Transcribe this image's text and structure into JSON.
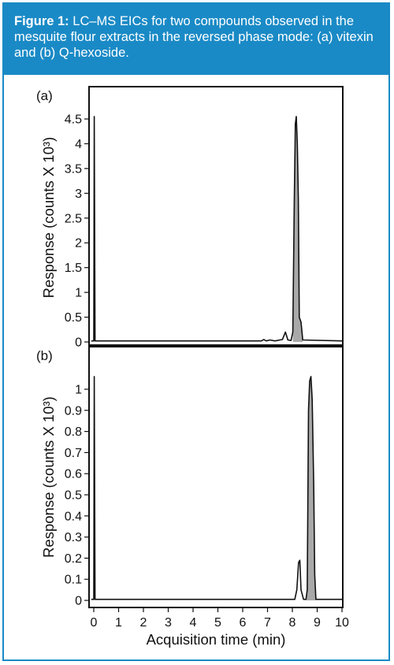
{
  "caption": {
    "label": "Figure 1:",
    "text": " LC–MS EICs for two compounds observed in the mesquite flour extracts in the reversed phase mode: (a) vitexin and (b) Q-hexoside."
  },
  "colors": {
    "accent": "#1a8ac6",
    "fill": "#a9a9a9"
  },
  "chart_data": [
    {
      "type": "line",
      "panel_label": "(a)",
      "ylabel": "Response (counts X 10³)",
      "xlabel": "",
      "xlim": [
        -0.2,
        10
      ],
      "ylim": [
        -0.05,
        4.9
      ],
      "yticks": [
        "0",
        "0.5",
        "1",
        "1.5",
        "2",
        "2.5",
        "3",
        "3.5",
        "4",
        "4.5"
      ],
      "series": [
        {
          "values": [
            [
              -0.1,
              0.02
            ],
            [
              0,
              0.02
            ],
            [
              0.02,
              4.55
            ],
            [
              0.05,
              0.02
            ],
            [
              6.75,
              0.02
            ],
            [
              6.85,
              0.05
            ],
            [
              6.95,
              0.02
            ],
            [
              7.1,
              0.04
            ],
            [
              7.3,
              0.02
            ],
            [
              7.6,
              0.05
            ],
            [
              7.72,
              0.2
            ],
            [
              7.82,
              0.04
            ],
            [
              7.95,
              0.03
            ],
            [
              8.02,
              0.2
            ],
            [
              8.08,
              2.9
            ],
            [
              8.12,
              4.4
            ],
            [
              8.16,
              4.55
            ],
            [
              8.2,
              4.0
            ],
            [
              8.24,
              2.9
            ],
            [
              8.28,
              0.5
            ],
            [
              8.35,
              0.4
            ],
            [
              8.42,
              0.04
            ],
            [
              10,
              0.02
            ]
          ]
        }
      ],
      "filled_peaks": [
        [
          8.0,
          8.42
        ]
      ]
    },
    {
      "type": "line",
      "panel_label": "(b)",
      "ylabel": "Response (counts X 10³)",
      "xlabel": "Acquisition time (min)",
      "xlim": [
        -0.2,
        10
      ],
      "ylim": [
        -0.03,
        1.08
      ],
      "xticks": [
        "0",
        "1",
        "2",
        "3",
        "4",
        "5",
        "6",
        "7",
        "8",
        "9",
        "10"
      ],
      "yticks": [
        "0",
        "0.1",
        "0.2",
        "0.3",
        "0.4",
        "0.5",
        "0.6",
        "0.7",
        "0.8",
        "0.9",
        "1"
      ],
      "series": [
        {
          "values": [
            [
              -0.1,
              0.005
            ],
            [
              0,
              0.005
            ],
            [
              0.02,
              1.06
            ],
            [
              0.05,
              0.005
            ],
            [
              8.1,
              0.005
            ],
            [
              8.18,
              0.05
            ],
            [
              8.25,
              0.18
            ],
            [
              8.3,
              0.19
            ],
            [
              8.35,
              0.05
            ],
            [
              8.45,
              0.005
            ],
            [
              8.55,
              0.005
            ],
            [
              8.6,
              0.05
            ],
            [
              8.65,
              0.9
            ],
            [
              8.7,
              1.04
            ],
            [
              8.75,
              1.06
            ],
            [
              8.8,
              0.95
            ],
            [
              8.86,
              0.55
            ],
            [
              8.9,
              0.12
            ],
            [
              8.95,
              0.005
            ],
            [
              10,
              0.005
            ]
          ]
        }
      ],
      "filled_peaks": [
        [
          8.55,
          8.95
        ]
      ]
    }
  ]
}
